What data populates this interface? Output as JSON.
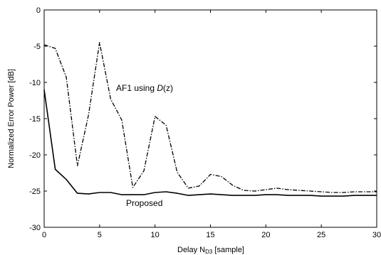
{
  "chart_data": {
    "type": "line",
    "xlabel": "Delay N",
    "xlabel_sub": "D3",
    "xlabel_suffix": " [sample]",
    "ylabel": "Normalized Error Power [dB]",
    "xlim": [
      0,
      30
    ],
    "ylim": [
      -30,
      0
    ],
    "xticks": [
      0,
      5,
      10,
      15,
      20,
      25,
      30
    ],
    "yticks": [
      0,
      -5,
      -10,
      -15,
      -20,
      -25,
      -30
    ],
    "grid": false,
    "series": [
      {
        "label_prefix": "AF1 using ",
        "label_italic": "D",
        "label_suffix": "(z)",
        "style": "dash-dot",
        "color": "#000000",
        "x": [
          0,
          1,
          2,
          3,
          4,
          5,
          6,
          7,
          8,
          9,
          10,
          11,
          12,
          13,
          14,
          15,
          16,
          17,
          18,
          19,
          20,
          21,
          22,
          23,
          24,
          25,
          26,
          27,
          28,
          29,
          30
        ],
        "y": [
          -4.8,
          -5.3,
          -9.3,
          -21.5,
          -14.5,
          -4.5,
          -12.3,
          -15.2,
          -24.5,
          -22.2,
          -14.7,
          -15.9,
          -22.4,
          -24.6,
          -24.3,
          -22.7,
          -23.0,
          -24.2,
          -24.9,
          -25.0,
          -24.8,
          -24.6,
          -24.8,
          -24.9,
          -25.0,
          -25.1,
          -25.2,
          -25.2,
          -25.1,
          -25.1,
          -25.1
        ]
      },
      {
        "label": "Proposed",
        "style": "solid",
        "color": "#000000",
        "x": [
          0,
          1,
          2,
          3,
          4,
          5,
          6,
          7,
          8,
          9,
          10,
          11,
          12,
          13,
          14,
          15,
          16,
          17,
          18,
          19,
          20,
          21,
          22,
          23,
          24,
          25,
          26,
          27,
          28,
          29,
          30
        ],
        "y": [
          -11.0,
          -22.0,
          -23.4,
          -25.3,
          -25.4,
          -25.2,
          -25.2,
          -25.5,
          -25.5,
          -25.5,
          -25.2,
          -25.1,
          -25.3,
          -25.6,
          -25.5,
          -25.4,
          -25.5,
          -25.6,
          -25.6,
          -25.6,
          -25.5,
          -25.5,
          -25.6,
          -25.6,
          -25.6,
          -25.7,
          -25.7,
          -25.7,
          -25.6,
          -25.6,
          -25.6
        ]
      }
    ]
  }
}
